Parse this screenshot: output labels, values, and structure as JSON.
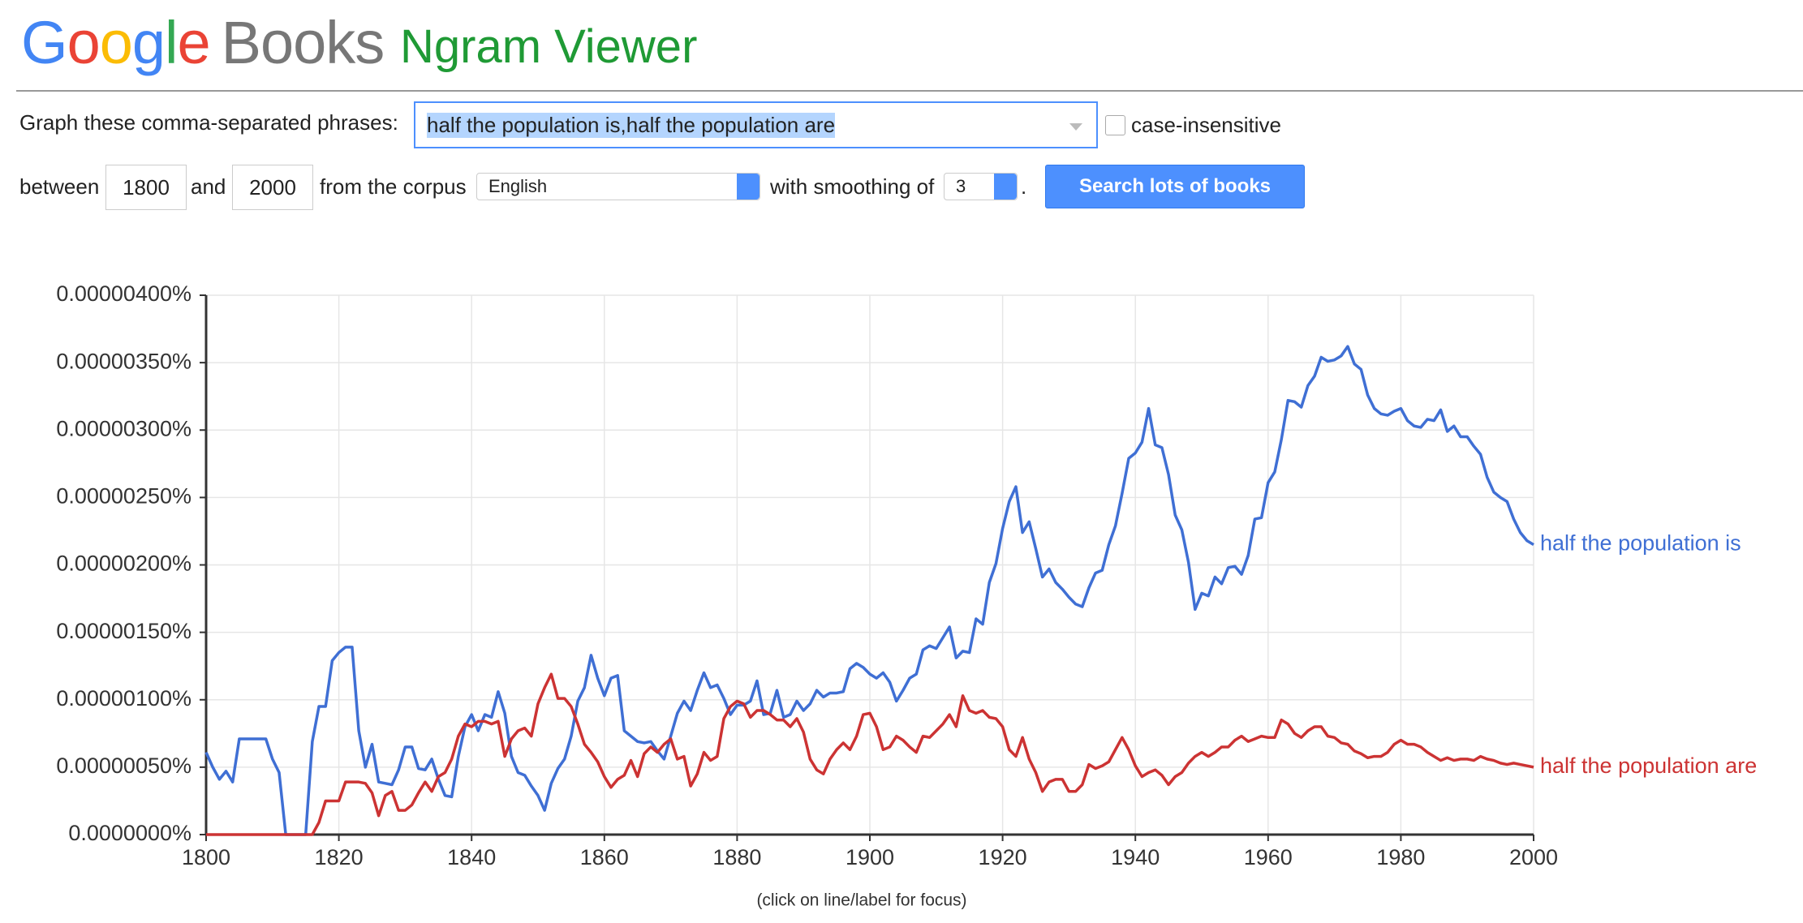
{
  "header": {
    "google": "Google",
    "books": "Books",
    "title": "Ngram Viewer"
  },
  "form": {
    "phrases_label": "Graph these comma-separated phrases:",
    "phrases": "half the population is,half the population are",
    "case_label": "case-insensitive",
    "between": "between",
    "start": "1800",
    "and": "and",
    "end": "2000",
    "corpus_label": "from the corpus",
    "corpus": "English",
    "smoothing_label": "with smoothing of",
    "smoothing": "3",
    "period": ".",
    "button": "Search lots of books"
  },
  "chart_data": {
    "type": "line",
    "note": "(click on line/label for focus)",
    "x": [
      1800,
      1801,
      1802,
      1803,
      1804,
      1805,
      1806,
      1807,
      1808,
      1809,
      1810,
      1811,
      1812,
      1813,
      1814,
      1815,
      1816,
      1817,
      1818,
      1819,
      1820,
      1821,
      1822,
      1823,
      1824,
      1825,
      1826,
      1827,
      1828,
      1829,
      1830,
      1831,
      1832,
      1833,
      1834,
      1835,
      1836,
      1837,
      1838,
      1839,
      1840,
      1841,
      1842,
      1843,
      1844,
      1845,
      1846,
      1847,
      1848,
      1849,
      1850,
      1851,
      1852,
      1853,
      1854,
      1855,
      1856,
      1857,
      1858,
      1859,
      1860,
      1861,
      1862,
      1863,
      1864,
      1865,
      1866,
      1867,
      1868,
      1869,
      1870,
      1871,
      1872,
      1873,
      1874,
      1875,
      1876,
      1877,
      1878,
      1879,
      1880,
      1881,
      1882,
      1883,
      1884,
      1885,
      1886,
      1887,
      1888,
      1889,
      1890,
      1891,
      1892,
      1893,
      1894,
      1895,
      1896,
      1897,
      1898,
      1899,
      1900,
      1901,
      1902,
      1903,
      1904,
      1905,
      1906,
      1907,
      1908,
      1909,
      1910,
      1911,
      1912,
      1913,
      1914,
      1915,
      1916,
      1917,
      1918,
      1919,
      1920,
      1921,
      1922,
      1923,
      1924,
      1925,
      1926,
      1927,
      1928,
      1929,
      1930,
      1931,
      1932,
      1933,
      1934,
      1935,
      1936,
      1937,
      1938,
      1939,
      1940,
      1941,
      1942,
      1943,
      1944,
      1945,
      1946,
      1947,
      1948,
      1949,
      1950,
      1951,
      1952,
      1953,
      1954,
      1955,
      1956,
      1957,
      1958,
      1959,
      1960,
      1961,
      1962,
      1963,
      1964,
      1965,
      1966,
      1967,
      1968,
      1969,
      1970,
      1971,
      1972,
      1973,
      1974,
      1975,
      1976,
      1977,
      1978,
      1979,
      1980,
      1981,
      1982,
      1983,
      1984,
      1985,
      1986,
      1987,
      1988,
      1989,
      1990,
      1991,
      1992,
      1993,
      1994,
      1995,
      1996,
      1997,
      1998,
      1999,
      2000
    ],
    "series": [
      {
        "name": "half the population is",
        "color": "#3f6fd4",
        "values": [
          6.1e-07,
          5e-07,
          4.1e-07,
          4.7e-07,
          3.9e-07,
          7.1e-07,
          7.1e-07,
          7.1e-07,
          7.1e-07,
          7.1e-07,
          5.6e-07,
          4.6e-07,
          0,
          0,
          0,
          0,
          6.9e-07,
          9.5e-07,
          9.5e-07,
          1.29e-06,
          1.35e-06,
          1.39e-06,
          1.39e-06,
          7.7e-07,
          5e-07,
          6.7e-07,
          3.9e-07,
          3.8e-07,
          3.7e-07,
          4.8e-07,
          6.5e-07,
          6.5e-07,
          4.9e-07,
          4.8e-07,
          5.6e-07,
          4.1e-07,
          2.9e-07,
          2.8e-07,
          5.8e-07,
          8e-07,
          8.9e-07,
          7.7e-07,
          8.9e-07,
          8.7e-07,
          1.06e-06,
          9e-07,
          5.8e-07,
          4.6e-07,
          4.4e-07,
          3.6e-07,
          2.9e-07,
          1.8e-07,
          3.8e-07,
          4.9e-07,
          5.6e-07,
          7.3e-07,
          9.9e-07,
          1.09e-06,
          1.33e-06,
          1.16e-06,
          1.03e-06,
          1.16e-06,
          1.18e-06,
          7.7e-07,
          7.3e-07,
          6.9e-07,
          6.8e-07,
          6.9e-07,
          6.2e-07,
          5.6e-07,
          7.3e-07,
          9e-07,
          9.9e-07,
          9.2e-07,
          1.07e-06,
          1.2e-06,
          1.09e-06,
          1.11e-06,
          1.01e-06,
          8.9e-07,
          9.6e-07,
          9.6e-07,
          9.9e-07,
          1.14e-06,
          8.9e-07,
          9e-07,
          1.07e-06,
          8.7e-07,
          8.9e-07,
          9.9e-07,
          9.2e-07,
          9.7e-07,
          1.07e-06,
          1.02e-06,
          1.05e-06,
          1.05e-06,
          1.06e-06,
          1.23e-06,
          1.27e-06,
          1.24e-06,
          1.19e-06,
          1.16e-06,
          1.2e-06,
          1.13e-06,
          9.9e-07,
          1.07e-06,
          1.16e-06,
          1.19e-06,
          1.37e-06,
          1.4e-06,
          1.38e-06,
          1.46e-06,
          1.54e-06,
          1.31e-06,
          1.36e-06,
          1.35e-06,
          1.6e-06,
          1.56e-06,
          1.87e-06,
          2.01e-06,
          2.27e-06,
          2.47e-06,
          2.58e-06,
          2.24e-06,
          2.32e-06,
          2.12e-06,
          1.91e-06,
          1.97e-06,
          1.87e-06,
          1.82e-06,
          1.76e-06,
          1.71e-06,
          1.69e-06,
          1.83e-06,
          1.94e-06,
          1.96e-06,
          2.15e-06,
          2.29e-06,
          2.53e-06,
          2.79e-06,
          2.83e-06,
          2.91e-06,
          3.16e-06,
          2.89e-06,
          2.87e-06,
          2.67e-06,
          2.37e-06,
          2.26e-06,
          2.02e-06,
          1.67e-06,
          1.79e-06,
          1.77e-06,
          1.91e-06,
          1.86e-06,
          1.98e-06,
          1.99e-06,
          1.93e-06,
          2.07e-06,
          2.34e-06,
          2.35e-06,
          2.61e-06,
          2.69e-06,
          2.93e-06,
          3.22e-06,
          3.21e-06,
          3.17e-06,
          3.33e-06,
          3.4e-06,
          3.54e-06,
          3.51e-06,
          3.52e-06,
          3.55e-06,
          3.62e-06,
          3.49e-06,
          3.45e-06,
          3.26e-06,
          3.16e-06,
          3.12e-06,
          3.11e-06,
          3.14e-06,
          3.16e-06,
          3.07e-06,
          3.03e-06,
          3.02e-06,
          3.08e-06,
          3.07e-06,
          3.15e-06,
          2.99e-06,
          3.03e-06,
          2.95e-06,
          2.95e-06,
          2.88e-06,
          2.82e-06,
          2.65e-06,
          2.54e-06,
          2.5e-06,
          2.47e-06,
          2.34e-06,
          2.24e-06,
          2.18e-06,
          2.15e-06
        ]
      },
      {
        "name": "half the population are",
        "color": "#cc3333",
        "values": [
          0,
          0,
          0,
          0,
          0,
          0,
          0,
          0,
          0,
          0,
          0,
          0,
          0,
          0,
          0,
          0,
          0,
          9e-08,
          2.5e-07,
          2.5e-07,
          2.5e-07,
          3.9e-07,
          3.9e-07,
          3.9e-07,
          3.8e-07,
          3.1e-07,
          1.4e-07,
          2.9e-07,
          3.2e-07,
          1.8e-07,
          1.8e-07,
          2.2e-07,
          3.1e-07,
          3.9e-07,
          3.2e-07,
          4.3e-07,
          4.6e-07,
          5.6e-07,
          7.3e-07,
          8.2e-07,
          8e-07,
          8.4e-07,
          8.4e-07,
          8.2e-07,
          8.4e-07,
          5.8e-07,
          7.1e-07,
          7.7e-07,
          7.9e-07,
          7.3e-07,
          9.7e-07,
          1.09e-06,
          1.19e-06,
          1.01e-06,
          1.01e-06,
          9.5e-07,
          8.2e-07,
          6.7e-07,
          6.1e-07,
          5.4e-07,
          4.3e-07,
          3.5e-07,
          4.1e-07,
          4.4e-07,
          5.5e-07,
          4.3e-07,
          6e-07,
          6.5e-07,
          6.1e-07,
          6.7e-07,
          7.1e-07,
          5.6e-07,
          5.8e-07,
          3.6e-07,
          4.5e-07,
          6.1e-07,
          5.5e-07,
          5.8e-07,
          8.6e-07,
          9.5e-07,
          9.9e-07,
          9.7e-07,
          8.7e-07,
          9.2e-07,
          9.2e-07,
          8.9e-07,
          8.5e-07,
          8.5e-07,
          8e-07,
          8.6e-07,
          7.6e-07,
          5.6e-07,
          4.8e-07,
          4.5e-07,
          5.6e-07,
          6.3e-07,
          6.8e-07,
          6.3e-07,
          7.3e-07,
          8.9e-07,
          9e-07,
          8e-07,
          6.3e-07,
          6.5e-07,
          7.3e-07,
          7e-07,
          6.5e-07,
          6.1e-07,
          7.3e-07,
          7.2e-07,
          7.7e-07,
          8.2e-07,
          8.9e-07,
          8e-07,
          1.03e-06,
          9.2e-07,
          9e-07,
          9.2e-07,
          8.7e-07,
          8.6e-07,
          8e-07,
          6.3e-07,
          5.8e-07,
          7.2e-07,
          5.6e-07,
          4.6e-07,
          3.2e-07,
          3.9e-07,
          4.1e-07,
          4.1e-07,
          3.2e-07,
          3.2e-07,
          3.7e-07,
          5.2e-07,
          4.9e-07,
          5.1e-07,
          5.4e-07,
          6.3e-07,
          7.2e-07,
          6.3e-07,
          5.1e-07,
          4.3e-07,
          4.6e-07,
          4.8e-07,
          4.4e-07,
          3.7e-07,
          4.3e-07,
          4.6e-07,
          5.3e-07,
          5.8e-07,
          6.1e-07,
          5.8e-07,
          6.1e-07,
          6.5e-07,
          6.5e-07,
          7e-07,
          7.3e-07,
          6.9e-07,
          7.1e-07,
          7.3e-07,
          7.2e-07,
          7.2e-07,
          8.5e-07,
          8.2e-07,
          7.5e-07,
          7.2e-07,
          7.7e-07,
          8e-07,
          8e-07,
          7.3e-07,
          7.2e-07,
          6.8e-07,
          6.7e-07,
          6.2e-07,
          6e-07,
          5.7e-07,
          5.8e-07,
          5.8e-07,
          6.1e-07,
          6.7e-07,
          7e-07,
          6.7e-07,
          6.7e-07,
          6.5e-07,
          6.1e-07,
          5.8e-07,
          5.5e-07,
          5.7e-07,
          5.5e-07,
          5.6e-07,
          5.6e-07,
          5.5e-07,
          5.8e-07,
          5.6e-07,
          5.5e-07,
          5.3e-07,
          5.2e-07,
          5.3e-07,
          5.2e-07,
          5.1e-07,
          5e-07
        ]
      }
    ],
    "xlim": [
      1800,
      2000
    ],
    "xticks": [
      1800,
      1820,
      1840,
      1860,
      1880,
      1900,
      1920,
      1940,
      1960,
      1980,
      2000
    ],
    "ylim": [
      0,
      4e-06
    ],
    "yticks": [
      {
        "value": 0,
        "label": "0.0000000%"
      },
      {
        "value": 5e-07,
        "label": "0.00000050%"
      },
      {
        "value": 1e-06,
        "label": "0.00000100%"
      },
      {
        "value": 1.5e-06,
        "label": "0.00000150%"
      },
      {
        "value": 2e-06,
        "label": "0.00000200%"
      },
      {
        "value": 2.5e-06,
        "label": "0.00000250%"
      },
      {
        "value": 3e-06,
        "label": "0.00000300%"
      },
      {
        "value": 3.5e-06,
        "label": "0.00000350%"
      },
      {
        "value": 4e-06,
        "label": "0.00000400%"
      }
    ],
    "grid": true
  }
}
